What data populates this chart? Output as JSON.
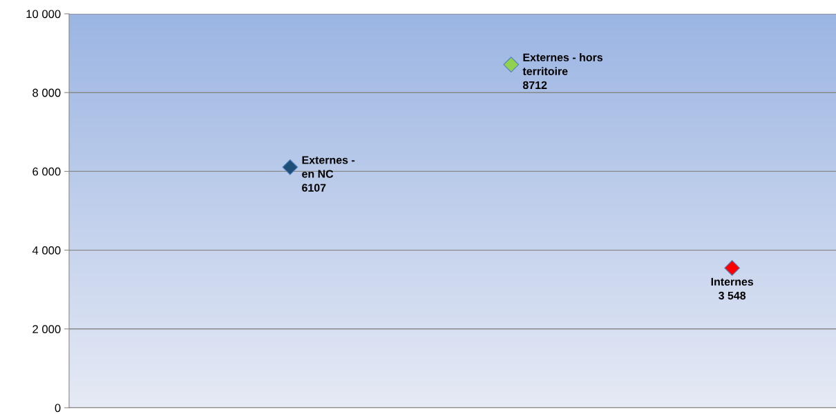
{
  "chart_data": {
    "type": "scatter",
    "categories": [
      null,
      null,
      null
    ],
    "series": [
      {
        "name": "Externes -\nen NC",
        "color": "#1f4e79",
        "values": [
          6107,
          null,
          null
        ],
        "value_labels": [
          "6107",
          null,
          null
        ]
      },
      {
        "name": "Externes - hors\nterritoire",
        "color": "#92d050",
        "values": [
          null,
          8712,
          null
        ],
        "value_labels": [
          null,
          "8712",
          null
        ]
      },
      {
        "name": "Internes",
        "color": "#ff0000",
        "values": [
          null,
          null,
          3548
        ],
        "value_labels": [
          null,
          null,
          "3 548"
        ]
      }
    ],
    "ylim": [
      0,
      10000
    ],
    "yticks": [
      {
        "value": 0,
        "label": "0"
      },
      {
        "value": 2000,
        "label": "2 000"
      },
      {
        "value": 4000,
        "label": "4 000"
      },
      {
        "value": 6000,
        "label": "6 000"
      },
      {
        "value": 8000,
        "label": "8 000"
      },
      {
        "value": 10000,
        "label": "10 000"
      }
    ],
    "grid": "y",
    "marker": "diamond",
    "tick_labels": "y",
    "legend": false
  }
}
